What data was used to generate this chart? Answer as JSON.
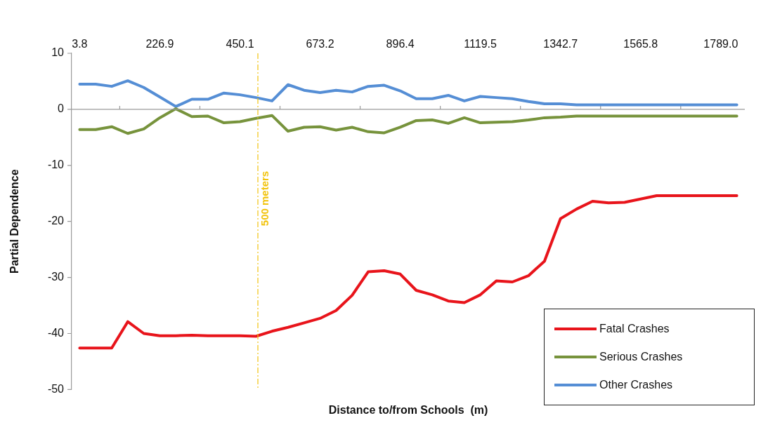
{
  "chart_data": {
    "type": "line",
    "xlabel": "Distance to/from Schools  (m)",
    "ylabel": "Partial Dependence",
    "x": [
      3.8,
      48.4,
      93.0,
      137.7,
      182.3,
      226.9,
      271.5,
      316.1,
      360.8,
      405.4,
      450.1,
      494.7,
      539.3,
      583.9,
      628.6,
      673.2,
      717.8,
      762.4,
      807.1,
      851.7,
      896.4,
      941.0,
      985.6,
      1030.2,
      1074.9,
      1119.5,
      1164.1,
      1208.7,
      1253.4,
      1298.0,
      1342.7,
      1387.3,
      1431.9,
      1476.5,
      1521.2,
      1565.8,
      1610.4,
      1655.0,
      1699.7,
      1744.3,
      1789.0,
      1833.6
    ],
    "series": [
      {
        "name": "Fatal Crashes",
        "color": "#e8141b",
        "values": [
          -42.6,
          -42.6,
          -42.6,
          -37.9,
          -40.0,
          -40.4,
          -40.4,
          -40.3,
          -40.4,
          -40.4,
          -40.4,
          -40.5,
          -39.6,
          -38.9,
          -38.1,
          -37.3,
          -35.9,
          -33.2,
          -29.0,
          -28.8,
          -29.4,
          -32.3,
          -33.1,
          -34.2,
          -34.5,
          -33.1,
          -30.6,
          -30.8,
          -29.7,
          -27.1,
          -19.5,
          -17.8,
          -16.4,
          -16.7,
          -16.6,
          -16.0,
          -15.4,
          -15.4,
          -15.4,
          -15.4,
          -15.4,
          -15.4
        ]
      },
      {
        "name": "Serious Crashes",
        "color": "#77933c",
        "values": [
          -3.6,
          -3.6,
          -3.1,
          -4.3,
          -3.5,
          -1.5,
          0.1,
          -1.3,
          -1.2,
          -2.4,
          -2.2,
          -1.6,
          -1.1,
          -3.9,
          -3.2,
          -3.1,
          -3.7,
          -3.2,
          -4.0,
          -4.2,
          -3.2,
          -2.0,
          -1.9,
          -2.5,
          -1.5,
          -2.4,
          -2.3,
          -2.2,
          -1.9,
          -1.5,
          -1.4,
          -1.2,
          -1.2,
          -1.2,
          -1.2,
          -1.2,
          -1.2,
          -1.2,
          -1.2,
          -1.2,
          -1.2,
          -1.2
        ]
      },
      {
        "name": "Other Crashes",
        "color": "#558ed5",
        "values": [
          4.5,
          4.5,
          4.1,
          5.1,
          3.9,
          2.2,
          0.5,
          1.8,
          1.8,
          2.9,
          2.6,
          2.1,
          1.5,
          4.4,
          3.4,
          3.0,
          3.4,
          3.1,
          4.1,
          4.3,
          3.3,
          1.9,
          1.9,
          2.5,
          1.5,
          2.3,
          2.1,
          1.9,
          1.4,
          1.0,
          1.0,
          0.8,
          0.8,
          0.8,
          0.8,
          0.8,
          0.8,
          0.8,
          0.8,
          0.8,
          0.8,
          0.8
        ]
      }
    ],
    "xlim": [
      -18.5,
      1855.9
    ],
    "xticks": [
      3.8,
      226.9,
      450.1,
      673.2,
      896.4,
      1119.5,
      1342.7,
      1565.8,
      {
        "value": 1789,
        "label": "1789.0"
      }
    ],
    "ylim": [
      -50,
      10
    ],
    "yticks": [
      -50,
      -40,
      -30,
      -20,
      -10,
      0,
      10
    ],
    "ref_lines": [
      {
        "axis": "x",
        "value": 500,
        "label": "500 meters",
        "color": "#f2c40f",
        "line_style": "dashed"
      },
      {
        "axis": "y",
        "value": 0,
        "color": "#9a9a9a",
        "line_style": "solid"
      }
    ],
    "grid": false,
    "legend": "bottom right",
    "marker": "none",
    "line_style": "solid"
  }
}
